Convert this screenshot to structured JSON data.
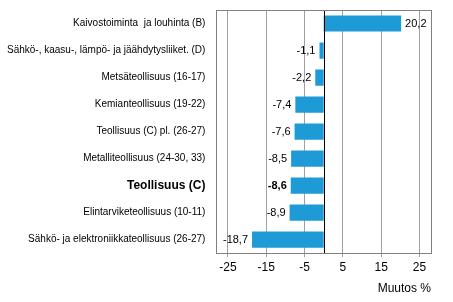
{
  "chart_data": {
    "type": "bar",
    "orientation": "horizontal",
    "categories": [
      "Kaivostoiminta  ja louhinta (B)",
      "Sähkö-, kaasu-, lämpö- ja jäähdytysliiket. (D)",
      "Metsäteollisuus (16-17)",
      "Kemianteollisuus (19-22)",
      "Teollisuus (C) pl. (26-27)",
      "Metalliteollisuus (24-30, 33)",
      "Teollisuus (C)",
      "Elintarviketeollisuus (10-11)",
      "Sähkö- ja elektroniikkateollisuus (26-27)"
    ],
    "values": [
      20.2,
      -1.1,
      -2.2,
      -7.4,
      -7.6,
      -8.5,
      -8.6,
      -8.9,
      -18.7
    ],
    "value_labels": [
      "20,2",
      "-1,1",
      "-2,2",
      "-7,4",
      "-7,6",
      "-8,5",
      "-8,6",
      "-8,9",
      "-18,7"
    ],
    "data_labels": true,
    "color": "#1e9ad6",
    "x_label": "Muutos %",
    "xlim": [
      -28,
      28
    ],
    "xticks": [
      -25,
      -15,
      -5,
      5,
      15,
      25
    ],
    "grid": true
  }
}
